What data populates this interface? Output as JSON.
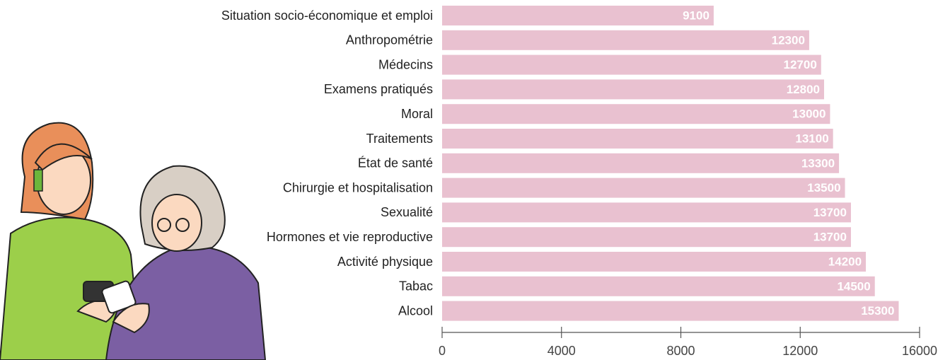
{
  "chart_data": {
    "type": "bar",
    "orientation": "horizontal",
    "categories": [
      "Situation socio-économique et emploi",
      "Anthropométrie",
      "Médecins",
      "Examens pratiqués",
      "Moral",
      "Traitements",
      "État de santé",
      "Chirurgie et hospitalisation",
      "Sexualité",
      "Hormones et vie reproductive",
      "Activité physique",
      "Tabac",
      "Alcool"
    ],
    "values": [
      9100,
      12300,
      12700,
      12800,
      13000,
      13100,
      13300,
      13500,
      13700,
      13700,
      14200,
      14500,
      15300
    ],
    "color": "#e9c1d0",
    "xlim": [
      0,
      16000
    ],
    "xticks": [
      0,
      4000,
      8000,
      12000,
      16000
    ]
  }
}
